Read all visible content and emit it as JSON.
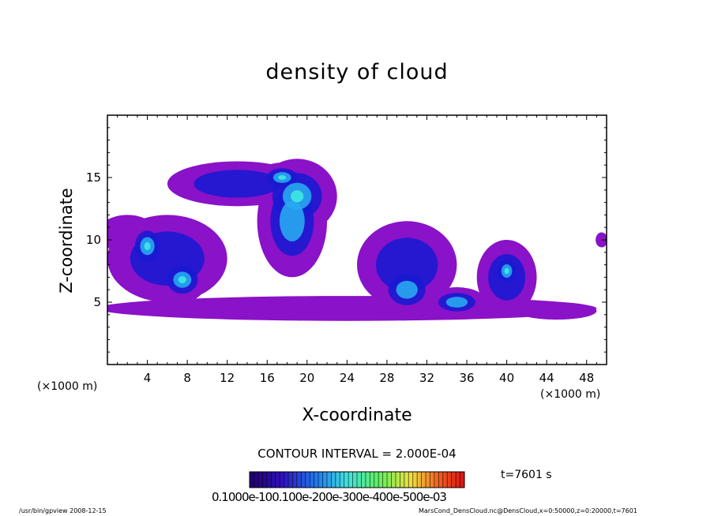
{
  "chart_data": {
    "type": "heatmap",
    "title": "density of cloud",
    "xlabel": "X-coordinate",
    "ylabel": "Z-coordinate",
    "x_unit_left": "(×1000 m)",
    "x_unit_right": "(×1000 m)",
    "xlim": [
      0,
      50
    ],
    "ylim": [
      0,
      20
    ],
    "xticks": [
      "4",
      "8",
      "12",
      "16",
      "20",
      "24",
      "28",
      "32",
      "36",
      "40",
      "44",
      "48"
    ],
    "yticks": [
      "5",
      "10",
      "15"
    ],
    "contour_interval": "CONTOUR INTERVAL = 2.000E-04",
    "time_label": "t=7601 s",
    "colorbar_labels": "0.1000e-100.100e-200e-300e-400e-500e-03",
    "colorbar_range": [
      0.0,
      0.001
    ],
    "cloud_regions": [
      {
        "x": 13.0,
        "z": 14.5,
        "rx": 7.0,
        "rz": 1.8,
        "level": 0.08
      },
      {
        "x": 19.0,
        "z": 13.5,
        "rx": 4.0,
        "rz": 3.0,
        "level": 0.25
      },
      {
        "x": 18.5,
        "z": 11.5,
        "rx": 3.5,
        "rz": 4.5,
        "level": 0.18
      },
      {
        "x": 17.5,
        "z": 15.0,
        "rx": 2.5,
        "rz": 1.2,
        "level": 0.35
      },
      {
        "x": 6.0,
        "z": 8.5,
        "rx": 6.0,
        "rz": 3.5,
        "level": 0.08
      },
      {
        "x": 4.0,
        "z": 9.5,
        "rx": 2.0,
        "rz": 2.0,
        "level": 0.22
      },
      {
        "x": 7.5,
        "z": 6.8,
        "rx": 2.5,
        "rz": 1.8,
        "level": 0.28
      },
      {
        "x": 24.0,
        "z": 4.5,
        "rx": 25.0,
        "rz": 1.0,
        "level": 0.05
      },
      {
        "x": 30.0,
        "z": 8.0,
        "rx": 5.0,
        "rz": 3.5,
        "level": 0.09
      },
      {
        "x": 30.0,
        "z": 6.0,
        "rx": 3.0,
        "rz": 2.0,
        "level": 0.2
      },
      {
        "x": 40.0,
        "z": 7.0,
        "rx": 3.0,
        "rz": 3.0,
        "level": 0.09
      },
      {
        "x": 40.0,
        "z": 7.5,
        "rx": 1.5,
        "rz": 1.5,
        "level": 0.22
      },
      {
        "x": 35.0,
        "z": 5.0,
        "rx": 3.0,
        "rz": 1.2,
        "level": 0.14
      },
      {
        "x": 2.0,
        "z": 10.5,
        "rx": 3.0,
        "rz": 1.5,
        "level": 0.07
      },
      {
        "x": 49.5,
        "z": 10.0,
        "rx": 0.6,
        "rz": 0.6,
        "level": 0.06
      },
      {
        "x": 45.0,
        "z": 4.3,
        "rx": 4.0,
        "rz": 0.7,
        "level": 0.05
      }
    ]
  },
  "colors": {
    "outer": "#8a12c8",
    "inner": "#1a1ad0",
    "core": "#28a8f0",
    "peak": "#40e8e0",
    "axis": "#000000",
    "background": "#ffffff"
  },
  "footer": {
    "left": "/usr/bin/gpview   2008-12-15",
    "right": "MarsCond_DensCloud.nc@DensCloud,x=0:50000,z=0:20000,t=7601"
  }
}
